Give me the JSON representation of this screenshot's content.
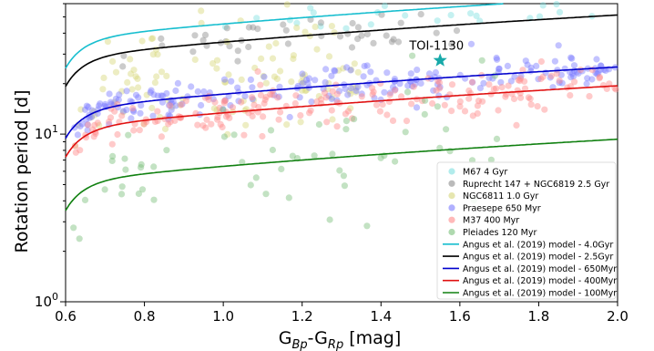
{
  "chart_data": {
    "type": "scatter",
    "xlabel_main": "G",
    "xlabel_sub1": "Bp",
    "xlabel_mid": "-G",
    "xlabel_sub2": "Rp",
    "xlabel_unit": " [mag]",
    "ylabel": "Rotation period [d]",
    "xlim": [
      0.6,
      2.0
    ],
    "ylim": [
      1,
      60
    ],
    "yscale": "log",
    "x_ticks": [
      "0.6",
      "0.8",
      "1.0",
      "1.2",
      "1.4",
      "1.6",
      "1.8",
      "2.0"
    ],
    "y_ticks": [
      {
        "value": 1,
        "base": "10",
        "exp": "0"
      },
      {
        "value": 10,
        "base": "10",
        "exp": "1"
      }
    ],
    "legend_position": "lower-right",
    "clusters": [
      {
        "name": "M67 4 Gyr",
        "color": "#7fe0e0",
        "age_gyr": 4.0,
        "x_range": [
          1.0,
          1.98
        ],
        "count": 35,
        "scatter": 0.06
      },
      {
        "name": "Ruprecht 147 + NGC6819 2.5 Gyr",
        "color": "#8c8c8c",
        "age_gyr": 2.5,
        "x_range": [
          0.74,
          1.6
        ],
        "count": 45,
        "scatter": 0.05
      },
      {
        "name": "NGC6811 1.0 Gyr",
        "color": "#d6d67a",
        "age_gyr": 1.0,
        "x_range": [
          0.62,
          1.35
        ],
        "count": 110,
        "scatter": 0.16
      },
      {
        "name": "Praesepe 650 Myr",
        "color": "#7b7bff",
        "age_gyr": 0.65,
        "x_range": [
          0.62,
          2.0
        ],
        "count": 220,
        "scatter": 0.05
      },
      {
        "name": "M37 400 Myr",
        "color": "#ff8a8a",
        "age_gyr": 0.4,
        "x_range": [
          0.62,
          2.0
        ],
        "count": 200,
        "scatter": 0.07
      },
      {
        "name": "Pleiades 120 Myr",
        "color": "#79bf79",
        "age_gyr": 0.12,
        "x_range": [
          0.62,
          1.7
        ],
        "count": 60,
        "scatter": 0.2
      }
    ],
    "models": [
      {
        "name": "Angus et al. (2019) model - 4.0Gyr",
        "color": "#17becf",
        "age_gyr": 4.0
      },
      {
        "name": "Angus et al. (2019) model - 2.5Gyr",
        "color": "#000000",
        "age_gyr": 2.5
      },
      {
        "name": "Angus et al. (2019) model - 650Myr",
        "color": "#0000cc",
        "age_gyr": 0.65
      },
      {
        "name": "Angus et al. (2019) model - 400Myr",
        "color": "#e01010",
        "age_gyr": 0.4
      },
      {
        "name": "Angus et al. (2019) model - 100Myr",
        "color": "#108010",
        "age_gyr": 0.1
      }
    ],
    "highlight": {
      "label": "TOI-1130",
      "x": 1.55,
      "y": 27.5,
      "color": "#17a9a9"
    }
  }
}
